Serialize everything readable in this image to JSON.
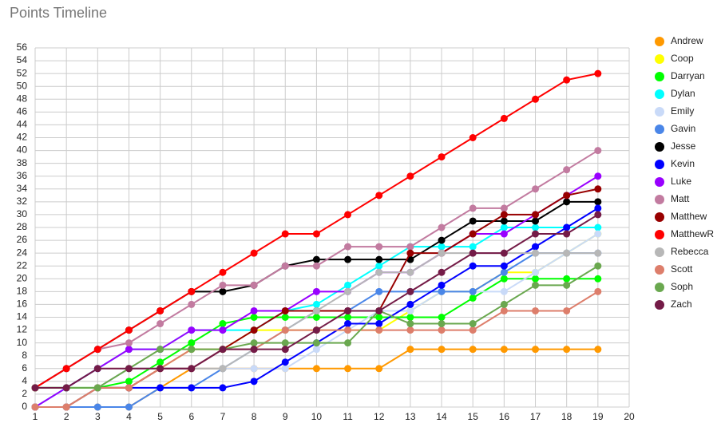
{
  "chart_data": {
    "type": "line",
    "title": "Points Timeline",
    "x": [
      1,
      2,
      3,
      4,
      5,
      6,
      7,
      8,
      9,
      10,
      11,
      12,
      13,
      14,
      15,
      16,
      17,
      18,
      19
    ],
    "xlim": [
      1,
      20
    ],
    "xticks": [
      1,
      2,
      3,
      4,
      5,
      6,
      7,
      8,
      9,
      10,
      11,
      12,
      13,
      14,
      15,
      16,
      17,
      18,
      19,
      20
    ],
    "ylim": [
      0,
      56
    ],
    "yticks": [
      0,
      2,
      4,
      6,
      8,
      10,
      12,
      14,
      16,
      18,
      20,
      22,
      24,
      26,
      28,
      30,
      32,
      34,
      36,
      38,
      40,
      42,
      44,
      46,
      48,
      50,
      52,
      54,
      56
    ],
    "grid": true,
    "legend": "right",
    "series": [
      {
        "name": "Andrew",
        "color": "#ff9900",
        "values": [
          0,
          0,
          0,
          0,
          3,
          6,
          6,
          6,
          6,
          6,
          6,
          6,
          9,
          9,
          9,
          9,
          9,
          9,
          9
        ]
      },
      {
        "name": "Coop",
        "color": "#ffff00",
        "values": [
          0,
          0,
          3,
          3,
          6,
          9,
          9,
          12,
          12,
          12,
          12,
          12,
          15,
          18,
          18,
          21,
          21,
          24,
          27
        ]
      },
      {
        "name": "Darryan",
        "color": "#00ff00",
        "values": [
          3,
          3,
          3,
          4,
          7,
          10,
          13,
          14,
          14,
          14,
          14,
          14,
          14,
          14,
          17,
          20,
          20,
          20,
          20
        ]
      },
      {
        "name": "Dylan",
        "color": "#00ffff",
        "values": [
          0,
          3,
          6,
          9,
          9,
          12,
          12,
          12,
          15,
          16,
          19,
          22,
          25,
          25,
          25,
          28,
          28,
          28,
          28
        ]
      },
      {
        "name": "Emily",
        "color": "#c9daf8",
        "values": [
          0,
          0,
          3,
          6,
          6,
          6,
          6,
          6,
          6,
          9,
          12,
          15,
          15,
          18,
          18,
          18,
          21,
          24,
          27
        ]
      },
      {
        "name": "Gavin",
        "color": "#4a86e8",
        "values": [
          0,
          0,
          0,
          0,
          3,
          3,
          6,
          9,
          12,
          15,
          15,
          18,
          18,
          18,
          18,
          21,
          24,
          24,
          24
        ]
      },
      {
        "name": "Jesse",
        "color": "#000000",
        "values": [
          3,
          6,
          9,
          12,
          15,
          18,
          18,
          19,
          22,
          23,
          23,
          23,
          23,
          26,
          29,
          29,
          29,
          32,
          32
        ]
      },
      {
        "name": "Kevin",
        "color": "#0000ff",
        "values": [
          0,
          0,
          3,
          3,
          3,
          3,
          3,
          4,
          7,
          10,
          13,
          13,
          16,
          19,
          22,
          22,
          25,
          28,
          31
        ]
      },
      {
        "name": "Luke",
        "color": "#9900ff",
        "values": [
          0,
          3,
          6,
          9,
          9,
          12,
          12,
          15,
          15,
          18,
          18,
          21,
          21,
          24,
          27,
          27,
          30,
          33,
          36
        ]
      },
      {
        "name": "Matt",
        "color": "#c27ba0",
        "values": [
          3,
          6,
          9,
          10,
          13,
          16,
          19,
          19,
          22,
          22,
          25,
          25,
          25,
          28,
          31,
          31,
          34,
          37,
          40
        ]
      },
      {
        "name": "Matthew",
        "color": "#980000",
        "values": [
          0,
          0,
          3,
          3,
          6,
          6,
          9,
          12,
          15,
          15,
          15,
          15,
          24,
          24,
          27,
          30,
          30,
          33,
          34
        ]
      },
      {
        "name": "MatthewR",
        "color": "#ff0000",
        "values": [
          3,
          6,
          9,
          12,
          15,
          18,
          21,
          24,
          27,
          27,
          30,
          33,
          36,
          39,
          42,
          45,
          48,
          51,
          52
        ]
      },
      {
        "name": "Rebecca",
        "color": "#b7b7b7",
        "values": [
          0,
          0,
          3,
          6,
          6,
          6,
          6,
          9,
          12,
          15,
          18,
          21,
          21,
          24,
          24,
          24,
          24,
          24,
          24
        ]
      },
      {
        "name": "Scott",
        "color": "#dd7e6b",
        "values": [
          0,
          0,
          3,
          3,
          6,
          9,
          9,
          9,
          12,
          12,
          12,
          12,
          12,
          12,
          12,
          15,
          15,
          15,
          18
        ]
      },
      {
        "name": "Soph",
        "color": "#6aa84f",
        "values": [
          3,
          3,
          3,
          6,
          9,
          9,
          9,
          10,
          10,
          10,
          10,
          15,
          13,
          13,
          13,
          16,
          19,
          19,
          22
        ]
      },
      {
        "name": "Zach",
        "color": "#741b47",
        "values": [
          3,
          3,
          6,
          6,
          6,
          6,
          9,
          9,
          9,
          12,
          15,
          15,
          18,
          21,
          24,
          24,
          27,
          27,
          30
        ]
      }
    ]
  }
}
